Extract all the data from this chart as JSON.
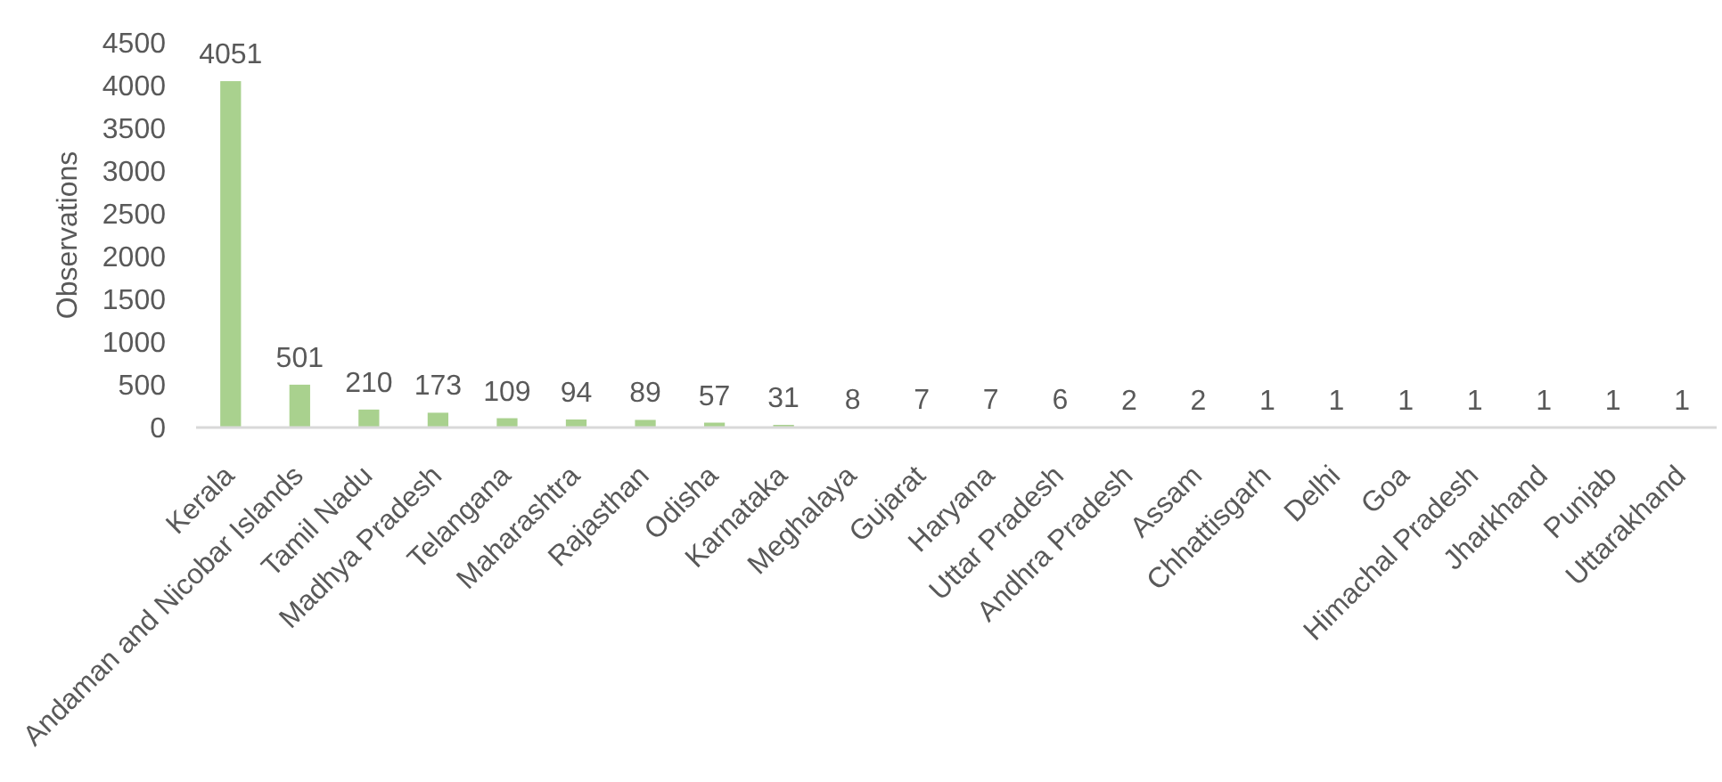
{
  "chart_data": {
    "type": "bar",
    "ylabel": "Observations",
    "categories": [
      "Kerala",
      "Andaman and Nicobar Islands",
      "Tamil Nadu",
      "Madhya Pradesh",
      "Telangana",
      "Maharashtra",
      "Rajasthan",
      "Odisha",
      "Karnataka",
      "Meghalaya",
      "Gujarat",
      "Haryana",
      "Uttar Pradesh",
      "Andhra Pradesh",
      "Assam",
      "Chhattisgarh",
      "Delhi",
      "Goa",
      "Himachal Pradesh",
      "Jharkhand",
      "Punjab",
      "Uttarakhand"
    ],
    "values": [
      4051,
      501,
      210,
      173,
      109,
      94,
      89,
      57,
      31,
      8,
      7,
      7,
      6,
      2,
      2,
      1,
      1,
      1,
      1,
      1,
      1,
      1
    ],
    "color": "#a9d18e",
    "ylim": [
      0,
      4500
    ],
    "yticks": [
      0,
      500,
      1000,
      1500,
      2000,
      2500,
      3000,
      3500,
      4000,
      4500
    ],
    "grid": false,
    "data_labels": true
  }
}
